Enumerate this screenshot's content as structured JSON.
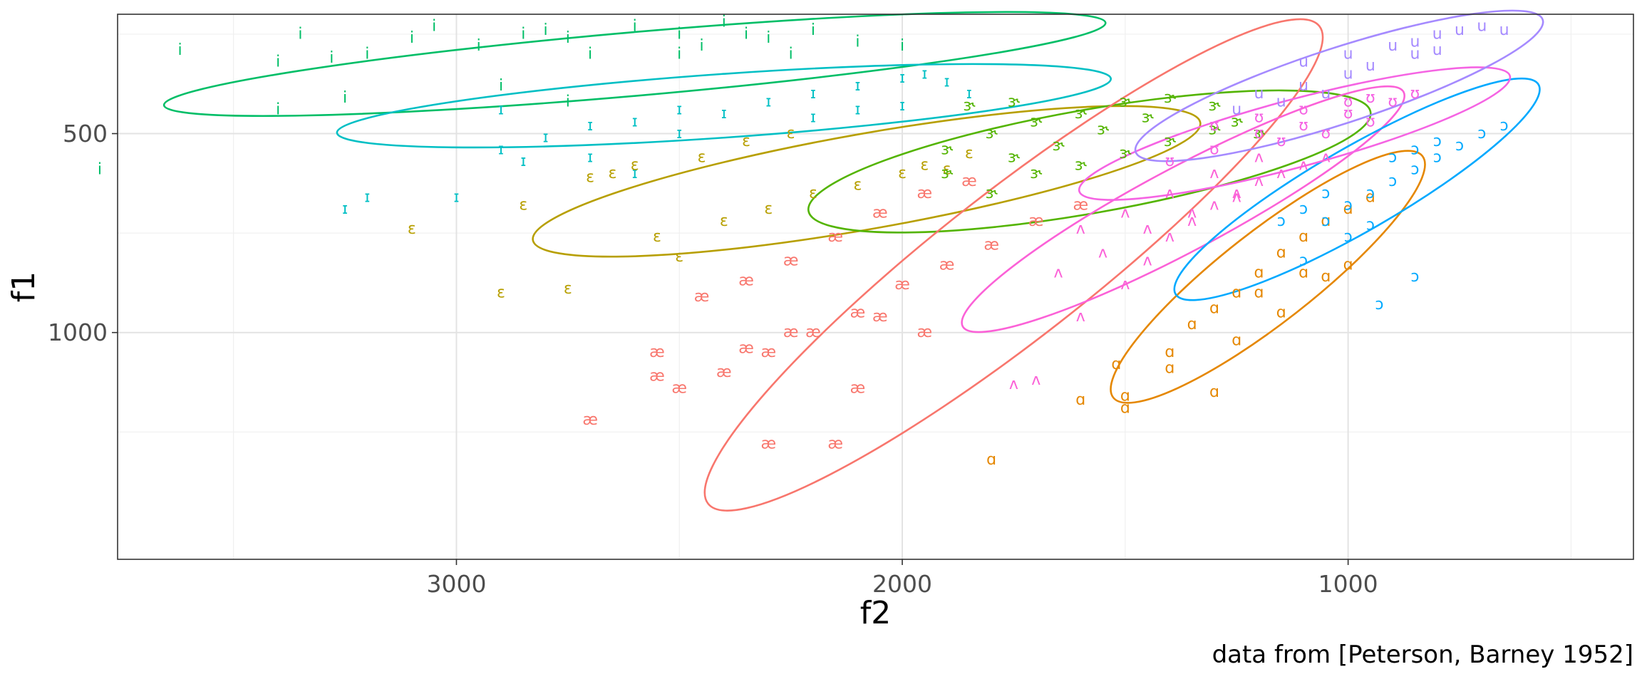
{
  "chart_data": {
    "type": "scatter",
    "xlabel": "f2",
    "ylabel": "f1",
    "caption": "data from [Peterson, Barney 1952]",
    "x_reversed": true,
    "y_reversed": true,
    "xlim": [
      3760,
      360
    ],
    "ylim": [
      200,
      1570
    ],
    "x_ticks": [
      3000,
      2000,
      1000
    ],
    "x_tick_labels": [
      "3000",
      "2000",
      "1000"
    ],
    "y_ticks": [
      500,
      1000
    ],
    "y_tick_labels": [
      "500",
      "1000"
    ],
    "grid": true,
    "legend": "none",
    "series": [
      {
        "name": "i",
        "color": "#00BE67",
        "ellipse": {
          "cx": 2600,
          "cy": 325,
          "rx": 1060,
          "ry": 80,
          "angle": -5
        },
        "points": [
          [
            3620,
            290
          ],
          [
            3400,
            320
          ],
          [
            3350,
            250
          ],
          [
            3280,
            310
          ],
          [
            3200,
            300
          ],
          [
            3100,
            260
          ],
          [
            3050,
            230
          ],
          [
            2950,
            280
          ],
          [
            2850,
            250
          ],
          [
            2800,
            240
          ],
          [
            2750,
            260
          ],
          [
            2700,
            300
          ],
          [
            2600,
            230
          ],
          [
            2500,
            250
          ],
          [
            2400,
            220
          ],
          [
            2300,
            260
          ],
          [
            2200,
            240
          ],
          [
            2100,
            270
          ],
          [
            2000,
            280
          ],
          [
            2900,
            380
          ],
          [
            2750,
            420
          ],
          [
            3250,
            410
          ],
          [
            3800,
            590
          ],
          [
            3400,
            440
          ],
          [
            2500,
            300
          ],
          [
            2450,
            280
          ],
          [
            2350,
            250
          ],
          [
            2250,
            300
          ]
        ]
      },
      {
        "name": "ɪ",
        "color": "#00BFC4",
        "ellipse": {
          "cx": 2400,
          "cy": 430,
          "rx": 870,
          "ry": 80,
          "angle": -4
        },
        "points": [
          [
            3250,
            690
          ],
          [
            3200,
            660
          ],
          [
            3000,
            660
          ],
          [
            2900,
            540
          ],
          [
            2850,
            570
          ],
          [
            2800,
            510
          ],
          [
            2700,
            480
          ],
          [
            2600,
            470
          ],
          [
            2500,
            440
          ],
          [
            2400,
            450
          ],
          [
            2300,
            420
          ],
          [
            2200,
            400
          ],
          [
            2100,
            380
          ],
          [
            2000,
            360
          ],
          [
            1950,
            350
          ],
          [
            1900,
            370
          ],
          [
            2900,
            440
          ],
          [
            2700,
            560
          ],
          [
            2600,
            600
          ],
          [
            2500,
            500
          ],
          [
            2200,
            460
          ],
          [
            2100,
            440
          ],
          [
            2000,
            430
          ],
          [
            1850,
            400
          ]
        ]
      },
      {
        "name": "ɛ",
        "color": "#B79F00",
        "ellipse": {
          "cx": 2080,
          "cy": 620,
          "rx": 760,
          "ry": 120,
          "angle": -10
        },
        "points": [
          [
            3100,
            740
          ],
          [
            2900,
            900
          ],
          [
            2750,
            890
          ],
          [
            2850,
            680
          ],
          [
            2700,
            610
          ],
          [
            2650,
            600
          ],
          [
            2550,
            760
          ],
          [
            2500,
            810
          ],
          [
            2400,
            720
          ],
          [
            2300,
            690
          ],
          [
            2200,
            650
          ],
          [
            2100,
            630
          ],
          [
            2000,
            600
          ],
          [
            1900,
            590
          ],
          [
            1850,
            550
          ],
          [
            2600,
            580
          ],
          [
            2450,
            560
          ],
          [
            2350,
            520
          ],
          [
            2250,
            500
          ],
          [
            1950,
            580
          ]
        ]
      },
      {
        "name": "ɝ",
        "color": "#53B400",
        "ellipse": {
          "cx": 1580,
          "cy": 570,
          "rx": 640,
          "ry": 130,
          "angle": -10
        },
        "points": [
          [
            1900,
            540
          ],
          [
            1800,
            500
          ],
          [
            1700,
            470
          ],
          [
            1600,
            450
          ],
          [
            1500,
            420
          ],
          [
            1400,
            410
          ],
          [
            1300,
            430
          ],
          [
            1250,
            470
          ],
          [
            1200,
            500
          ],
          [
            1800,
            650
          ],
          [
            1700,
            600
          ],
          [
            1600,
            580
          ],
          [
            1500,
            550
          ],
          [
            1400,
            520
          ],
          [
            1300,
            490
          ],
          [
            1900,
            600
          ],
          [
            1750,
            560
          ],
          [
            1650,
            530
          ],
          [
            1550,
            490
          ],
          [
            1450,
            460
          ],
          [
            1850,
            430
          ],
          [
            1750,
            420
          ]
        ]
      },
      {
        "name": "æ",
        "color": "#F8766D",
        "ellipse": {
          "cx": 1750,
          "cy": 830,
          "rx": 870,
          "ry": 185,
          "angle": -38
        },
        "points": [
          [
            2700,
            1220
          ],
          [
            2300,
            1280
          ],
          [
            2150,
            1280
          ],
          [
            2550,
            1050
          ],
          [
            2500,
            1140
          ],
          [
            2400,
            1100
          ],
          [
            2300,
            1050
          ],
          [
            2200,
            1000
          ],
          [
            2100,
            950
          ],
          [
            2000,
            880
          ],
          [
            1900,
            830
          ],
          [
            1800,
            780
          ],
          [
            1700,
            720
          ],
          [
            1600,
            680
          ],
          [
            2450,
            910
          ],
          [
            2350,
            870
          ],
          [
            2250,
            820
          ],
          [
            2150,
            760
          ],
          [
            2050,
            700
          ],
          [
            1950,
            650
          ],
          [
            1850,
            620
          ],
          [
            2350,
            1040
          ],
          [
            2250,
            1000
          ],
          [
            2050,
            960
          ],
          [
            1950,
            1000
          ],
          [
            2550,
            1110
          ],
          [
            2100,
            1140
          ]
        ]
      },
      {
        "name": "ʌ",
        "color": "#FB61D7",
        "ellipse": {
          "cx": 1370,
          "cy": 690,
          "rx": 560,
          "ry": 105,
          "angle": -28
        },
        "points": [
          [
            1750,
            1130
          ],
          [
            1700,
            1120
          ],
          [
            1600,
            960
          ],
          [
            1500,
            880
          ],
          [
            1450,
            820
          ],
          [
            1400,
            760
          ],
          [
            1350,
            720
          ],
          [
            1300,
            680
          ],
          [
            1250,
            650
          ],
          [
            1200,
            620
          ],
          [
            1150,
            600
          ],
          [
            1100,
            580
          ],
          [
            1050,
            560
          ],
          [
            1650,
            850
          ],
          [
            1550,
            800
          ],
          [
            1450,
            740
          ],
          [
            1350,
            700
          ],
          [
            1250,
            660
          ],
          [
            1500,
            700
          ],
          [
            1400,
            650
          ],
          [
            1300,
            600
          ],
          [
            1200,
            560
          ],
          [
            1600,
            740
          ]
        ]
      },
      {
        "name": "ɑ",
        "color": "#E58700",
        "ellipse": {
          "cx": 1180,
          "cy": 860,
          "rx": 440,
          "ry": 115,
          "angle": -38
        },
        "points": [
          [
            1800,
            1320
          ],
          [
            1600,
            1170
          ],
          [
            1500,
            1160
          ],
          [
            1500,
            1190
          ],
          [
            1300,
            1150
          ],
          [
            1520,
            1080
          ],
          [
            1400,
            1050
          ],
          [
            1350,
            980
          ],
          [
            1300,
            940
          ],
          [
            1250,
            900
          ],
          [
            1200,
            850
          ],
          [
            1150,
            800
          ],
          [
            1100,
            760
          ],
          [
            1050,
            720
          ],
          [
            1000,
            690
          ],
          [
            950,
            660
          ],
          [
            1400,
            1090
          ],
          [
            1250,
            1020
          ],
          [
            1150,
            950
          ],
          [
            1050,
            860
          ],
          [
            1000,
            830
          ],
          [
            1200,
            900
          ],
          [
            1100,
            850
          ]
        ]
      },
      {
        "name": "ɔ",
        "color": "#00A9FF",
        "ellipse": {
          "cx": 980,
          "cy": 640,
          "rx": 470,
          "ry": 105,
          "angle": -30
        },
        "points": [
          [
            850,
            860
          ],
          [
            930,
            930
          ],
          [
            1100,
            820
          ],
          [
            1000,
            760
          ],
          [
            950,
            730
          ],
          [
            1050,
            720
          ],
          [
            1000,
            680
          ],
          [
            950,
            650
          ],
          [
            900,
            620
          ],
          [
            850,
            590
          ],
          [
            800,
            560
          ],
          [
            750,
            530
          ],
          [
            700,
            500
          ],
          [
            650,
            480
          ],
          [
            900,
            560
          ],
          [
            850,
            540
          ],
          [
            800,
            520
          ],
          [
            1050,
            650
          ],
          [
            1100,
            690
          ],
          [
            1150,
            720
          ]
        ]
      },
      {
        "name": "ʊ",
        "color": "#F564E3",
        "ellipse": {
          "cx": 1120,
          "cy": 500,
          "rx": 500,
          "ry": 85,
          "angle": -15
        },
        "points": [
          [
            1400,
            570
          ],
          [
            1300,
            540
          ],
          [
            1200,
            500
          ],
          [
            1100,
            480
          ],
          [
            1000,
            450
          ],
          [
            900,
            420
          ],
          [
            850,
            400
          ],
          [
            1300,
            480
          ],
          [
            1200,
            460
          ],
          [
            1100,
            440
          ],
          [
            1000,
            420
          ],
          [
            950,
            410
          ],
          [
            1150,
            520
          ],
          [
            1050,
            500
          ],
          [
            950,
            470
          ]
        ]
      },
      {
        "name": "u",
        "color": "#A58AFF",
        "ellipse": {
          "cx": 1020,
          "cy": 380,
          "rx": 480,
          "ry": 95,
          "angle": -18
        },
        "points": [
          [
            1100,
            320
          ],
          [
            1000,
            300
          ],
          [
            900,
            280
          ],
          [
            850,
            270
          ],
          [
            800,
            250
          ],
          [
            750,
            240
          ],
          [
            700,
            230
          ],
          [
            650,
            240
          ],
          [
            1200,
            400
          ],
          [
            1100,
            380
          ],
          [
            1000,
            350
          ],
          [
            950,
            330
          ],
          [
            850,
            300
          ],
          [
            800,
            290
          ],
          [
            1250,
            440
          ],
          [
            1150,
            420
          ],
          [
            1050,
            400
          ]
        ]
      }
    ]
  }
}
